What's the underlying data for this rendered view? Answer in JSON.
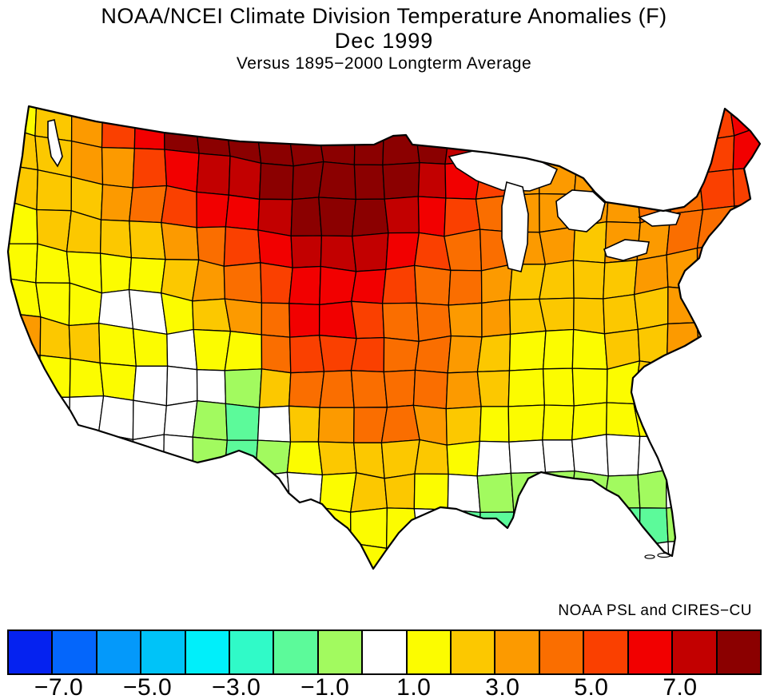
{
  "title": {
    "line1": "NOAA/NCEI Climate Division Temperature Anomalies (F)",
    "line2": "Dec 1999",
    "line3": "Versus 1895−2000 Longterm Average"
  },
  "attribution": "NOAA PSL and CIRES−CU",
  "colorbar": {
    "unit": "F",
    "value_start": -8,
    "bucket_width": 1,
    "segment_colors": [
      "#0522F0",
      "#0466FB",
      "#0499FA",
      "#00C3F8",
      "#00EFFA",
      "#30FAC8",
      "#5CFA9A",
      "#A2FA5F",
      "#FFFFFF",
      "#FCFC00",
      "#FCC800",
      "#FC9A00",
      "#FA6E00",
      "#FA4000",
      "#F20000",
      "#C20000",
      "#8B0000"
    ],
    "ticks": [
      {
        "boundary_index": 1,
        "label": "−7.0"
      },
      {
        "boundary_index": 3,
        "label": "−5.0"
      },
      {
        "boundary_index": 5,
        "label": "−3.0"
      },
      {
        "boundary_index": 7,
        "label": "−1.0"
      },
      {
        "boundary_index": 9,
        "label": "1.0"
      },
      {
        "boundary_index": 11,
        "label": "3.0"
      },
      {
        "boundary_index": 13,
        "label": "5.0"
      },
      {
        "boundary_index": 15,
        "label": "7.0"
      }
    ]
  },
  "map_data": {
    "type": "choropleth",
    "region_type": "US climate divisions",
    "value_field": "temperature_anomaly_F",
    "field_grid": {
      "cols": 14,
      "rows": 9,
      "values": [
        [
          1.5,
          2.5,
          5.5,
          8.5,
          8.5,
          8.5,
          8.5,
          8.5,
          7.5,
          4.5,
          3.5,
          4.5,
          5.5,
          6.5
        ],
        [
          2.5,
          2.5,
          3.5,
          6.5,
          7.5,
          8.5,
          8.5,
          8.5,
          5.5,
          3.5,
          3.5,
          4.5,
          5.5,
          6.5
        ],
        [
          1.5,
          2.5,
          2.5,
          3.5,
          5.5,
          7.5,
          7.5,
          6.5,
          4.5,
          3.5,
          2.5,
          3.5,
          4.5,
          4.5
        ],
        [
          1.5,
          1.5,
          0.5,
          1.5,
          3.5,
          6.5,
          6.5,
          4.5,
          3.5,
          2.5,
          2.5,
          2.5,
          4.5,
          3.5
        ],
        [
          3.5,
          2.5,
          1.5,
          0.5,
          1.5,
          5.5,
          5.5,
          4.5,
          3.5,
          1.5,
          1.5,
          2.5,
          3.5,
          2.5
        ],
        [
          2.5,
          0.5,
          0.5,
          0.5,
          -2.2,
          2.5,
          4.5,
          4.5,
          2.5,
          1.5,
          1.5,
          1.5,
          1.5,
          1.5
        ],
        [
          1.5,
          0.5,
          0.5,
          0.5,
          -1.5,
          0.5,
          2.5,
          2.5,
          0.5,
          0.5,
          0.5,
          0.5,
          0.5,
          0.5
        ],
        [
          0.5,
          0.5,
          0.5,
          0.5,
          0.5,
          0.5,
          1.5,
          1.5,
          -1.5,
          -1.5,
          -2.5,
          -1.5,
          0.5,
          0.5
        ],
        [
          0.5,
          0.5,
          0.5,
          0.5,
          0.5,
          1.5,
          1.5,
          1.5,
          -1.5,
          -1.5,
          0.5,
          0.5,
          1.5,
          1.5
        ]
      ]
    }
  }
}
